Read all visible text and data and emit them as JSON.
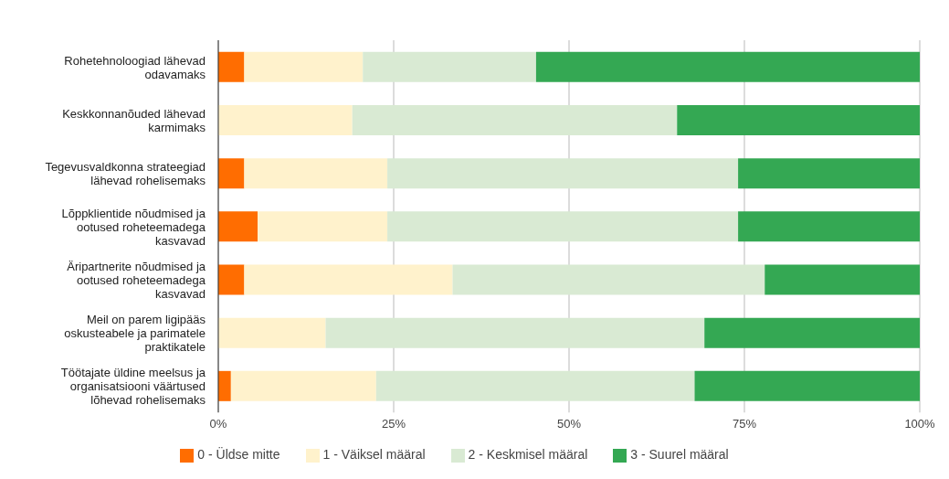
{
  "chart_data": {
    "type": "bar",
    "orientation": "horizontal",
    "stacked": true,
    "categories": [
      "Rohetehnoloogiad lähevad odavamaks",
      "Keskkonnanõuded lähevad karmimaks",
      "Tegevusvaldkonna strateegiad lähevad rohelisemaks",
      "Lõppklientide nõudmised ja ootused roheteemadega kasvavad",
      "Äripartnerite nõudmised ja ootused roheteemadega kasvavad",
      "Meil on parem ligipääs oskusteabele ja parimatele praktikatele",
      "Töötajate üldine meelsus ja organisatsiooni väärtused lõhevad rohelisemaks"
    ],
    "series": [
      {
        "name": "0 - Üldse mitte",
        "color": "#ff6d01",
        "values": [
          3.7,
          0,
          3.7,
          5.6,
          3.7,
          0,
          1.8
        ]
      },
      {
        "name": "1 - Väiksel määral",
        "color": "#fff2cc",
        "values": [
          16.9,
          19.1,
          20.4,
          18.5,
          29.7,
          15.3,
          20.7
        ]
      },
      {
        "name": "2 - Keskmisel määral",
        "color": "#d9ead3",
        "values": [
          24.7,
          46.3,
          50.0,
          50.0,
          44.5,
          54.0,
          45.4
        ]
      },
      {
        "name": "3 - Suurel määral",
        "color": "#34a853",
        "values": [
          54.7,
          34.6,
          25.9,
          25.9,
          22.1,
          30.7,
          32.1
        ]
      }
    ],
    "xlim": [
      0,
      100
    ],
    "xticks": [
      {
        "value": 0,
        "label": "0%"
      },
      {
        "value": 25,
        "label": "25%"
      },
      {
        "value": 50,
        "label": "50%"
      },
      {
        "value": 75,
        "label": "75%"
      },
      {
        "value": 100,
        "label": "100%"
      }
    ],
    "grid": "x",
    "legend": "bottom"
  }
}
